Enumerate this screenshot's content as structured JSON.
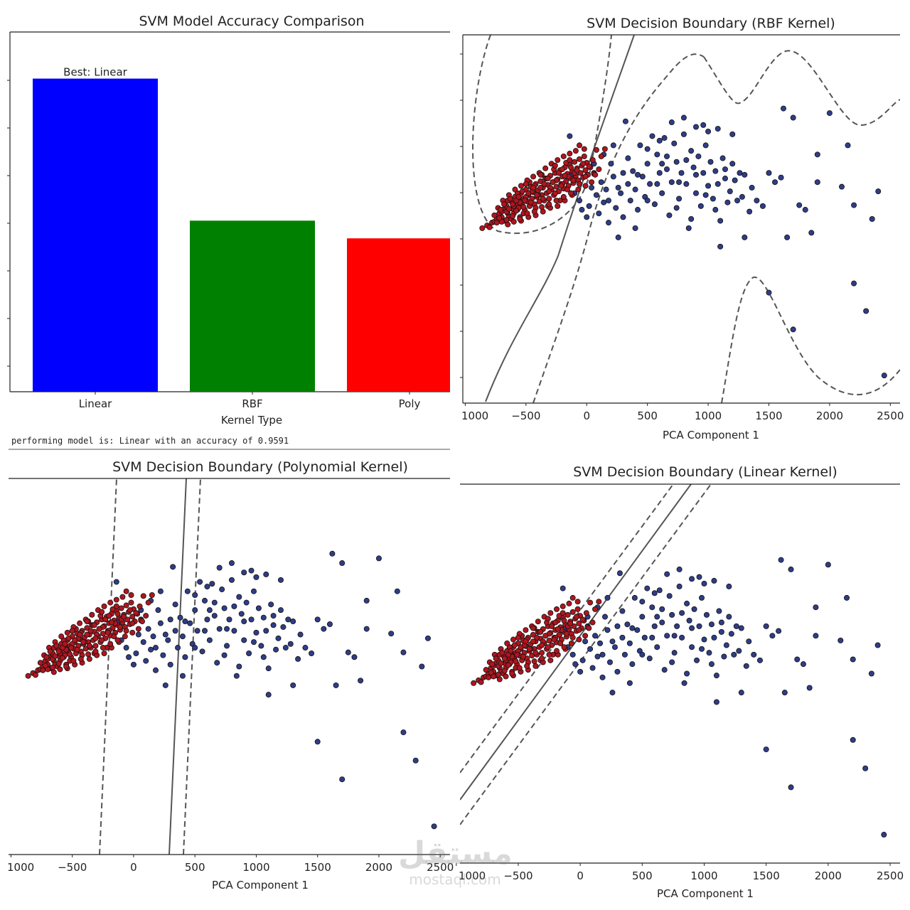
{
  "console_text": "performing model is: Linear with an accuracy of 0.9591",
  "watermark": {
    "arabic": "مستقل",
    "latin": "mostaql.com"
  },
  "colors": {
    "class_a": "#b0151e",
    "class_b": "#2f3d88",
    "edge": "#111111",
    "boundary": "#555555",
    "axis": "#222222"
  },
  "chart_data": [
    {
      "type": "bar",
      "title": "SVM Model Accuracy Comparison",
      "xlabel": "Kernel Type",
      "ylabel": "",
      "categories": [
        "Linear",
        "RBF",
        "Poly"
      ],
      "values": [
        0.9591,
        0.7735,
        0.7504
      ],
      "bar_colors": [
        "#0000ff",
        "#008000",
        "#ff0000"
      ],
      "ylim": [
        0.55,
        1.02
      ],
      "annotation": "Best: Linear",
      "annotation_index": 0
    },
    {
      "type": "scatter",
      "title": "SVM Decision Boundary (RBF Kernel)",
      "xlabel": "PCA Component 1",
      "xticks": [
        "1000",
        "−500",
        "0",
        "500",
        "1000",
        "1500",
        "2000",
        "2500"
      ],
      "xlim": [
        -1020,
        2580
      ],
      "ylim": [
        -1500,
        2500
      ],
      "kernel": "rbf",
      "grid": false
    },
    {
      "type": "scatter",
      "title": "SVM Decision Boundary (Polynomial Kernel)",
      "xlabel": "PCA Component 1",
      "xticks": [
        "1000",
        "−500",
        "0",
        "500",
        "1000",
        "1500",
        "2000",
        "2500"
      ],
      "xlim": [
        -1020,
        2580
      ],
      "ylim": [
        -1500,
        2500
      ],
      "kernel": "poly",
      "grid": false
    },
    {
      "type": "scatter",
      "title": "SVM Decision Boundary (Linear Kernel)",
      "xlabel": "PCA Component 1",
      "xticks": [
        "1000",
        "−500",
        "0",
        "500",
        "1000",
        "1500",
        "2000",
        "2500"
      ],
      "xlim": [
        -970,
        2580
      ],
      "ylim": [
        -1500,
        2500
      ],
      "kernel": "linear",
      "grid": false
    }
  ],
  "points": {
    "class_a": [
      [
        -820,
        430
      ],
      [
        -780,
        460
      ],
      [
        -760,
        470
      ],
      [
        -740,
        500
      ],
      [
        -720,
        560
      ],
      [
        -700,
        520
      ],
      [
        -690,
        600
      ],
      [
        -680,
        480
      ],
      [
        -660,
        640
      ],
      [
        -650,
        560
      ],
      [
        -640,
        520
      ],
      [
        -620,
        690
      ],
      [
        -610,
        610
      ],
      [
        -600,
        560
      ],
      [
        -590,
        740
      ],
      [
        -580,
        650
      ],
      [
        -570,
        600
      ],
      [
        -560,
        700
      ],
      [
        -550,
        520
      ],
      [
        -540,
        780
      ],
      [
        -530,
        650
      ],
      [
        -520,
        720
      ],
      [
        -510,
        600
      ],
      [
        -500,
        820
      ],
      [
        -490,
        690
      ],
      [
        -480,
        760
      ],
      [
        -470,
        640
      ],
      [
        -460,
        850
      ],
      [
        -450,
        720
      ],
      [
        -440,
        790
      ],
      [
        -430,
        660
      ],
      [
        -420,
        880
      ],
      [
        -410,
        740
      ],
      [
        -400,
        810
      ],
      [
        -390,
        690
      ],
      [
        -380,
        910
      ],
      [
        -370,
        760
      ],
      [
        -360,
        840
      ],
      [
        -350,
        700
      ],
      [
        -340,
        940
      ],
      [
        -330,
        780
      ],
      [
        -320,
        870
      ],
      [
        -310,
        720
      ],
      [
        -300,
        970
      ],
      [
        -290,
        820
      ],
      [
        -280,
        900
      ],
      [
        -270,
        760
      ],
      [
        -260,
        1000
      ],
      [
        -250,
        850
      ],
      [
        -240,
        930
      ],
      [
        -230,
        800
      ],
      [
        -220,
        1030
      ],
      [
        -210,
        880
      ],
      [
        -200,
        960
      ],
      [
        -190,
        830
      ],
      [
        -180,
        1060
      ],
      [
        -170,
        910
      ],
      [
        -160,
        990
      ],
      [
        -150,
        860
      ],
      [
        -140,
        1090
      ],
      [
        -130,
        940
      ],
      [
        -120,
        1020
      ],
      [
        -110,
        890
      ],
      [
        -100,
        1120
      ],
      [
        -90,
        970
      ],
      [
        -80,
        1050
      ],
      [
        -70,
        920
      ],
      [
        -60,
        1150
      ],
      [
        -50,
        1000
      ],
      [
        -40,
        1080
      ],
      [
        -30,
        950
      ],
      [
        -20,
        1180
      ],
      [
        -10,
        1030
      ],
      [
        0,
        1110
      ],
      [
        10,
        980
      ],
      [
        30,
        1060
      ],
      [
        50,
        1140
      ],
      [
        80,
        1250
      ],
      [
        120,
        1180
      ],
      [
        150,
        1260
      ],
      [
        -700,
        580
      ],
      [
        -650,
        700
      ],
      [
        -600,
        640
      ],
      [
        -550,
        680
      ],
      [
        -500,
        740
      ],
      [
        -450,
        800
      ],
      [
        -400,
        760
      ],
      [
        -350,
        880
      ],
      [
        -300,
        840
      ],
      [
        -250,
        920
      ],
      [
        -200,
        880
      ],
      [
        -150,
        960
      ],
      [
        -100,
        1000
      ],
      [
        -620,
        500
      ],
      [
        -570,
        780
      ],
      [
        -520,
        560
      ],
      [
        -470,
        900
      ],
      [
        -420,
        620
      ],
      [
        -370,
        980
      ],
      [
        -320,
        640
      ],
      [
        -270,
        1040
      ],
      [
        -220,
        700
      ],
      [
        -170,
        1110
      ],
      [
        -120,
        760
      ],
      [
        -730,
        620
      ],
      [
        -690,
        700
      ],
      [
        -640,
        760
      ],
      [
        -590,
        820
      ],
      [
        -540,
        860
      ],
      [
        -490,
        920
      ],
      [
        -440,
        960
      ],
      [
        -390,
        1000
      ],
      [
        -340,
        1050
      ],
      [
        -290,
        1100
      ],
      [
        -240,
        1140
      ],
      [
        -190,
        1180
      ],
      [
        -140,
        1210
      ],
      [
        -90,
        1240
      ],
      [
        -60,
        1300
      ],
      [
        -20,
        1260
      ],
      [
        -760,
        540
      ],
      [
        -710,
        600
      ],
      [
        -660,
        580
      ],
      [
        -610,
        660
      ],
      [
        -560,
        620
      ],
      [
        -510,
        700
      ],
      [
        -460,
        680
      ],
      [
        -410,
        760
      ],
      [
        -360,
        720
      ],
      [
        -310,
        800
      ],
      [
        -260,
        780
      ],
      [
        -210,
        860
      ],
      [
        -160,
        820
      ],
      [
        -110,
        920
      ],
      [
        -60,
        880
      ],
      [
        -10,
        960
      ],
      [
        -680,
        660
      ],
      [
        -630,
        720
      ],
      [
        -580,
        700
      ],
      [
        -530,
        800
      ],
      [
        -480,
        780
      ],
      [
        -430,
        860
      ],
      [
        -380,
        840
      ],
      [
        -330,
        940
      ],
      [
        -280,
        900
      ],
      [
        -230,
        1000
      ],
      [
        -180,
        970
      ],
      [
        -130,
        1060
      ],
      [
        -80,
        1030
      ],
      [
        -30,
        1100
      ],
      [
        20,
        1070
      ],
      [
        60,
        990
      ],
      [
        -600,
        470
      ],
      [
        -540,
        480
      ],
      [
        -480,
        520
      ],
      [
        -420,
        540
      ],
      [
        -360,
        580
      ],
      [
        -300,
        620
      ],
      [
        -240,
        640
      ],
      [
        -180,
        700
      ],
      [
        -560,
        740
      ],
      [
        -500,
        880
      ],
      [
        -440,
        840
      ],
      [
        -380,
        980
      ],
      [
        -320,
        940
      ],
      [
        -260,
        1080
      ],
      [
        -200,
        1040
      ],
      [
        -140,
        1140
      ],
      [
        -740,
        460
      ],
      [
        -700,
        470
      ],
      [
        -650,
        440
      ],
      [
        -720,
        510
      ],
      [
        -660,
        490
      ],
      [
        -610,
        530
      ],
      [
        -550,
        500
      ],
      [
        -490,
        560
      ],
      [
        -430,
        580
      ],
      [
        -370,
        630
      ],
      [
        -310,
        660
      ],
      [
        -250,
        700
      ],
      [
        -190,
        740
      ],
      [
        -130,
        780
      ],
      [
        -70,
        820
      ],
      [
        -10,
        860
      ],
      [
        40,
        900
      ],
      [
        70,
        980
      ],
      [
        100,
        1040
      ],
      [
        -860,
        400
      ],
      [
        -800,
        410
      ],
      [
        -640,
        610
      ],
      [
        -580,
        590
      ],
      [
        -520,
        630
      ]
    ],
    "class_b": [
      [
        -140,
        1400
      ],
      [
        -120,
        980
      ],
      [
        -100,
        780
      ],
      [
        -60,
        700
      ],
      [
        -40,
        600
      ],
      [
        0,
        520
      ],
      [
        20,
        640
      ],
      [
        40,
        840
      ],
      [
        60,
        1000
      ],
      [
        80,
        760
      ],
      [
        100,
        560
      ],
      [
        120,
        900
      ],
      [
        140,
        680
      ],
      [
        160,
        820
      ],
      [
        180,
        460
      ],
      [
        200,
        1100
      ],
      [
        220,
        960
      ],
      [
        240,
        620
      ],
      [
        260,
        300
      ],
      [
        280,
        780
      ],
      [
        300,
        520
      ],
      [
        320,
        1560
      ],
      [
        340,
        880
      ],
      [
        360,
        700
      ],
      [
        380,
        1020
      ],
      [
        400,
        820
      ],
      [
        420,
        600
      ],
      [
        440,
        1300
      ],
      [
        460,
        960
      ],
      [
        480,
        740
      ],
      [
        500,
        1100
      ],
      [
        520,
        880
      ],
      [
        540,
        1400
      ],
      [
        560,
        660
      ],
      [
        580,
        1200
      ],
      [
        600,
        1000
      ],
      [
        620,
        780
      ],
      [
        640,
        1380
      ],
      [
        660,
        1180
      ],
      [
        680,
        540
      ],
      [
        700,
        900
      ],
      [
        720,
        1320
      ],
      [
        740,
        1120
      ],
      [
        760,
        720
      ],
      [
        780,
        1000
      ],
      [
        800,
        1420
      ],
      [
        820,
        880
      ],
      [
        840,
        400
      ],
      [
        860,
        1240
      ],
      [
        880,
        1060
      ],
      [
        900,
        780
      ],
      [
        920,
        1180
      ],
      [
        940,
        640
      ],
      [
        960,
        1000
      ],
      [
        980,
        1300
      ],
      [
        1000,
        860
      ],
      [
        1020,
        1120
      ],
      [
        1040,
        720
      ],
      [
        1060,
        1020
      ],
      [
        1080,
        880
      ],
      [
        1100,
        480
      ],
      [
        1120,
        1160
      ],
      [
        1140,
        940
      ],
      [
        1160,
        680
      ],
      [
        1180,
        800
      ],
      [
        1200,
        1100
      ],
      [
        1220,
        920
      ],
      [
        1260,
        1000
      ],
      [
        1280,
        740
      ],
      [
        1300,
        980
      ],
      [
        1340,
        580
      ],
      [
        1400,
        700
      ],
      [
        1450,
        640
      ],
      [
        1500,
        1000
      ],
      [
        1550,
        900
      ],
      [
        1600,
        950
      ],
      [
        1620,
        1700
      ],
      [
        1650,
        300
      ],
      [
        1700,
        1600
      ],
      [
        1750,
        650
      ],
      [
        1800,
        600
      ],
      [
        1850,
        350
      ],
      [
        1900,
        900
      ],
      [
        2000,
        1650
      ],
      [
        2100,
        850
      ],
      [
        2150,
        1300
      ],
      [
        2200,
        -200
      ],
      [
        2300,
        -500
      ],
      [
        2350,
        500
      ],
      [
        2400,
        800
      ],
      [
        2450,
        -1200
      ],
      [
        2200,
        650
      ],
      [
        1900,
        1200
      ],
      [
        1700,
        -700
      ],
      [
        1500,
        -300
      ],
      [
        1300,
        300
      ],
      [
        1100,
        200
      ],
      [
        860,
        500
      ],
      [
        760,
        900
      ],
      [
        620,
        1100
      ],
      [
        500,
        700
      ],
      [
        400,
        400
      ],
      [
        300,
        1000
      ],
      [
        220,
        1300
      ],
      [
        140,
        1200
      ],
      [
        60,
        1100
      ],
      [
        180,
        700
      ],
      [
        260,
        840
      ],
      [
        340,
        1160
      ],
      [
        420,
        980
      ],
      [
        500,
        1260
      ],
      [
        580,
        880
      ],
      [
        660,
        1040
      ],
      [
        740,
        620
      ],
      [
        820,
        1140
      ],
      [
        900,
        980
      ],
      [
        980,
        760
      ],
      [
        1060,
        600
      ],
      [
        1140,
        1040
      ],
      [
        1240,
        700
      ],
      [
        1360,
        840
      ],
      [
        900,
        1500
      ],
      [
        1000,
        1450
      ],
      [
        800,
        1600
      ],
      [
        700,
        1550
      ],
      [
        600,
        1350
      ],
      [
        960,
        1520
      ],
      [
        1080,
        1480
      ],
      [
        1200,
        1420
      ]
    ]
  }
}
